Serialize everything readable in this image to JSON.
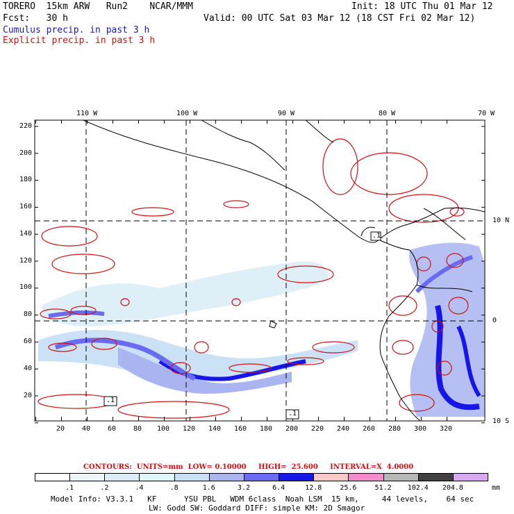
{
  "header": {
    "model": "TORERO  15km ARW   Run2    NCAR/MMM",
    "init": "Init: 18 UTC Thu 01 Mar 12",
    "fcst": "Fcst:   30 h",
    "valid": "Valid: 00 UTC Sat 03 Mar 12 (18 CST Fri 02 Mar 12)",
    "legend_cumulus": "Cumulus precip. in past 3 h",
    "legend_explicit": "Explicit precip. in past 3 h"
  },
  "map": {
    "lon_labels": [
      "110 W",
      "100 W",
      "90 W",
      "80 W",
      "70 W"
    ],
    "lat_labels": [
      "10 N",
      "0",
      "10 S"
    ],
    "y_ticks": [
      "220",
      "200",
      "180",
      "160",
      "140",
      "120",
      "100",
      "80",
      "60",
      "40",
      "20"
    ],
    "x_ticks": [
      "20",
      "40",
      "60",
      "80",
      "100",
      "120",
      "140",
      "160",
      "180",
      "200",
      "220",
      "240",
      "260",
      "280",
      "300",
      "320"
    ],
    "box_labels": [
      ".1",
      ".1",
      ".1"
    ],
    "station_labels": [
      "L",
      "m"
    ]
  },
  "contours": {
    "text": "CONTOURS:  UNITS=mm  LOW= 0.10000     HIGH=  25.600     INTERVAL=X  4.0000"
  },
  "colorbar": {
    "labels": [
      ".1",
      ".2",
      ".4",
      ".8",
      "1.6",
      "3.2",
      "6.4",
      "12.8",
      "25.6",
      "51.2",
      "102.4",
      "204.8"
    ],
    "unit": "mm",
    "colors": [
      "#ffffff",
      "#eef6fa",
      "#dcedf7",
      "#dff7fb",
      "#c8dff5",
      "#a9b4f0",
      "#6b6bf2",
      "#1616e8",
      "#f7c9c9",
      "#f28ccb",
      "#b7b7b7",
      "#404040",
      "#d9a8f5"
    ]
  },
  "footer": {
    "line1": "Model Info: V3.3.1   KF      YSU PBL   WDM 6class  Noah LSM  15 km,     44 levels,    64 sec",
    "line2": "LW: Godd SW: Goddard DIFF: simple KM: 2D Smagor"
  }
}
